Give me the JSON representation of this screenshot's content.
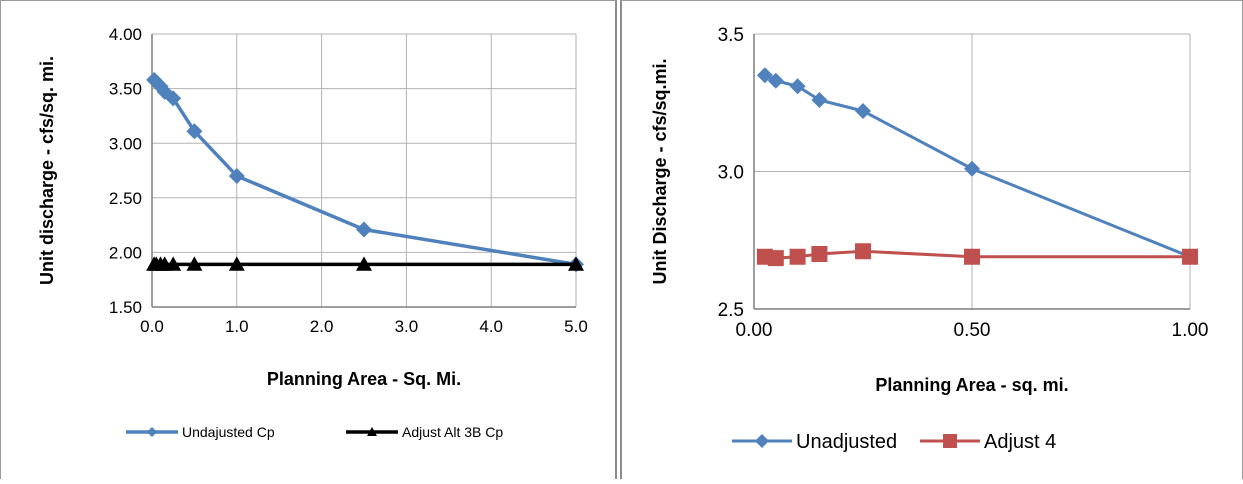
{
  "charts": {
    "left": {
      "chart_data": {
        "type": "line",
        "title": "",
        "xlabel": "Planning Area - Sq. Mi.",
        "ylabel": "Unit discharge - cfs/sq. mi.",
        "xlim": [
          0,
          5
        ],
        "ylim": [
          1.5,
          4.0
        ],
        "x_ticks": [
          0,
          1,
          2,
          3,
          4,
          5
        ],
        "x_tick_labels": [
          "0.0",
          "1.0",
          "2.0",
          "3.0",
          "4.0",
          "5.0"
        ],
        "y_ticks": [
          1.5,
          2.0,
          2.5,
          3.0,
          3.5,
          4.0
        ],
        "y_tick_labels": [
          "1.50",
          "2.00",
          "2.50",
          "3.00",
          "3.50",
          "4.00"
        ],
        "grid": "vertical and horizontal",
        "legend_position": "bottom",
        "series": [
          {
            "name": "Undajusted Cp",
            "color": "#4f81bd",
            "marker": "diamond",
            "x": [
              0.025,
              0.05,
              0.1,
              0.15,
              0.25,
              0.5,
              1.0,
              2.5,
              5.0
            ],
            "y": [
              3.58,
              3.56,
              3.52,
              3.47,
              3.41,
              3.11,
              2.7,
              2.21,
              1.89
            ]
          },
          {
            "name": "Adjust Alt 3B Cp",
            "color": "#000000",
            "marker": "triangle",
            "x": [
              0.025,
              0.05,
              0.1,
              0.15,
              0.25,
              0.5,
              1.0,
              2.5,
              5.0
            ],
            "y": [
              1.89,
              1.89,
              1.89,
              1.89,
              1.89,
              1.89,
              1.89,
              1.89,
              1.89
            ]
          }
        ]
      }
    },
    "right": {
      "chart_data": {
        "type": "line",
        "title": "",
        "xlabel": "Planning Area - sq. mi.",
        "ylabel": "Unit Discharge - cfs/sq.mi.",
        "xlim": [
          0,
          1
        ],
        "ylim": [
          2.5,
          3.5
        ],
        "x_ticks": [
          0,
          0.5,
          1.0
        ],
        "x_tick_labels": [
          "0.00",
          "0.50",
          "1.00"
        ],
        "y_ticks": [
          2.5,
          3.0,
          3.5
        ],
        "y_tick_labels": [
          "2.5",
          "3.0",
          "3.5"
        ],
        "grid": "vertical and horizontal",
        "legend_position": "bottom",
        "series": [
          {
            "name": "Unadjusted",
            "color": "#4f81bd",
            "marker": "diamond",
            "x": [
              0.025,
              0.05,
              0.1,
              0.15,
              0.25,
              0.5,
              1.0
            ],
            "y": [
              3.35,
              3.33,
              3.31,
              3.26,
              3.22,
              3.01,
              2.69
            ]
          },
          {
            "name": "Adjust 4",
            "color": "#c0504d",
            "marker": "square",
            "x": [
              0.025,
              0.05,
              0.1,
              0.15,
              0.25,
              0.5,
              1.0
            ],
            "y": [
              2.69,
              2.685,
              2.69,
              2.7,
              2.71,
              2.69,
              2.69
            ]
          }
        ]
      }
    }
  }
}
